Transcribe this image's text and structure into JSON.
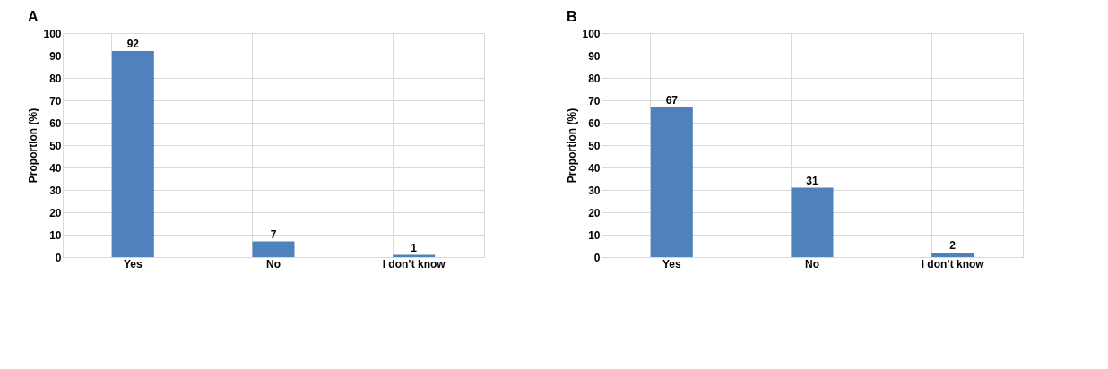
{
  "chart_data": [
    {
      "type": "bar",
      "title": "A",
      "categories": [
        "Yes",
        "No",
        "I don’t know"
      ],
      "values": [
        92,
        7,
        1
      ],
      "color": "#4f81bd",
      "ylabel": "Proportion (%)",
      "ylim": [
        0,
        100
      ],
      "yticks": [
        0,
        10,
        20,
        30,
        40,
        50,
        60,
        70,
        80,
        90,
        100
      ],
      "grid": true,
      "data_labels": true
    },
    {
      "type": "bar",
      "title": "B",
      "categories": [
        "Yes",
        "No",
        "I don’t know"
      ],
      "values": [
        67,
        31,
        2
      ],
      "color": "#4f81bd",
      "ylabel": "Proportion (%)",
      "ylim": [
        0,
        100
      ],
      "yticks": [
        0,
        10,
        20,
        30,
        40,
        50,
        60,
        70,
        80,
        90,
        100
      ],
      "grid": true,
      "data_labels": true
    }
  ]
}
